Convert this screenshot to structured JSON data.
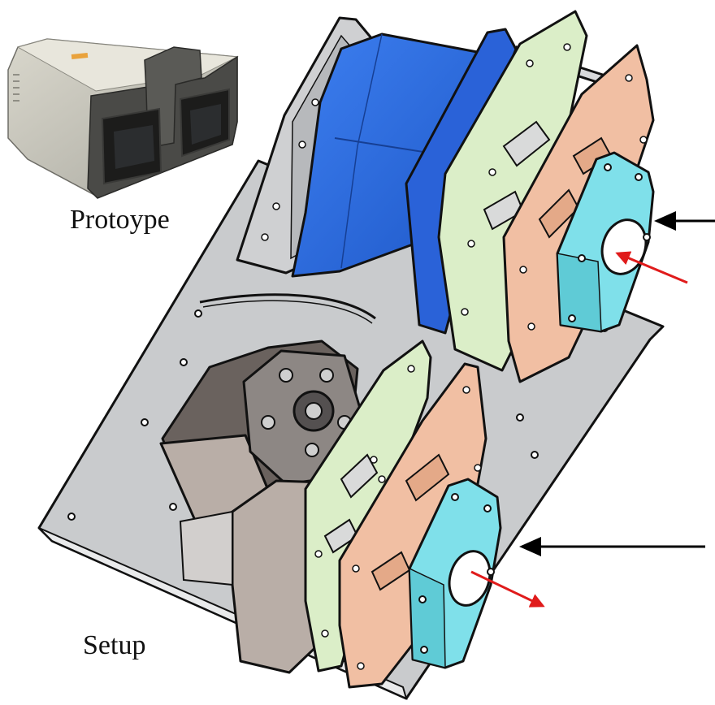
{
  "captions": {
    "prototype": "Protoype",
    "setup": "Setup"
  },
  "colors": {
    "base_plate": "#c9cbcd",
    "outline": "#111111",
    "fan_blue": "#2f6fe0",
    "fan_blue_dark": "#1f57c4",
    "green_board": "#dbeec8",
    "salmon_board": "#f1bfa3",
    "flange_cyan": "#7fe0ea",
    "grey_body": "#b9aea7",
    "arrow_red": "#e01b1b",
    "arrow_black": "#000000",
    "photo_grey": "#8d8d88"
  },
  "arrows": [
    {
      "name": "upper-output-arrow",
      "color": "black"
    },
    {
      "name": "upper-beam-arrow",
      "color": "red"
    },
    {
      "name": "lower-output-arrow",
      "color": "black"
    },
    {
      "name": "lower-beam-arrow",
      "color": "red"
    }
  ]
}
